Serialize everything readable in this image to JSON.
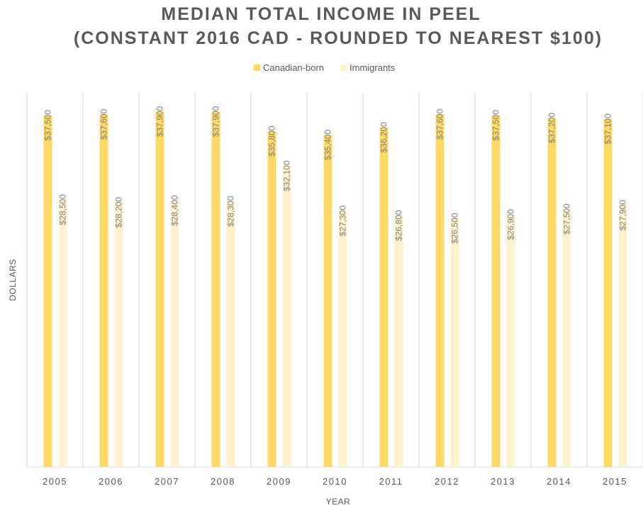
{
  "chart_data": {
    "type": "bar",
    "title": "MEDIAN TOTAL INCOME IN PEEL",
    "subtitle": "(CONSTANT 2016 CAD - ROUNDED TO NEAREST $100)",
    "x_label": "YEAR",
    "y_label": "DOLLARS",
    "categories": [
      "2005",
      "2006",
      "2007",
      "2008",
      "2009",
      "2010",
      "2011",
      "2012",
      "2013",
      "2014",
      "2015"
    ],
    "series": [
      {
        "name": "Canadian-born",
        "color": "#ffd966",
        "values": [
          37500,
          37600,
          37900,
          37900,
          35800,
          35400,
          36200,
          37600,
          37500,
          37200,
          37100
        ],
        "value_labels": [
          "$37,500",
          "$37,600",
          "$37,900",
          "$37,900",
          "$35,800",
          "$35,400",
          "$36,200",
          "$37,600",
          "$37,500",
          "$37,200",
          "$37,100"
        ]
      },
      {
        "name": "Immigrants",
        "color": "#fff2cc",
        "values": [
          28500,
          28200,
          28400,
          28300,
          32100,
          27300,
          26800,
          26500,
          26900,
          27500,
          27900
        ],
        "value_labels": [
          "$28,500",
          "$28,200",
          "$28,400",
          "$28,300",
          "$32,100",
          "$27,300",
          "$26,800",
          "$26,500",
          "$26,900",
          "$27,500",
          "$27,900"
        ]
      }
    ],
    "ylim": [
      0,
      40000
    ],
    "legend": "top"
  }
}
